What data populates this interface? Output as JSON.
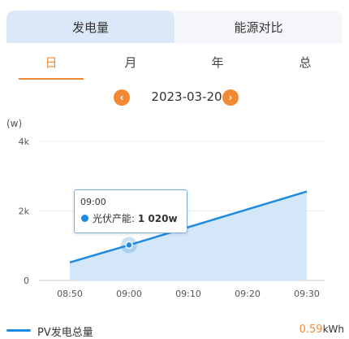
{
  "top_tabs": [
    {
      "label": "发电量",
      "active": true
    },
    {
      "label": "能源对比",
      "active": false
    }
  ],
  "period_tabs": [
    {
      "label": "日",
      "active": true
    },
    {
      "label": "月",
      "active": false
    },
    {
      "label": "年",
      "active": false
    },
    {
      "label": "总",
      "active": false
    }
  ],
  "date_nav": {
    "prev_icon": "chevron-left-icon",
    "next_icon": "chevron-right-icon",
    "date": "2023-03-20"
  },
  "colors": {
    "accent": "#f28a35",
    "series": "#1f8be0",
    "area": "#cfe4f8"
  },
  "chart_data": {
    "type": "area",
    "unit_label": "(w)",
    "y_ticks": [
      "4k",
      "2k",
      "0"
    ],
    "ylim": [
      0,
      4000
    ],
    "x_ticks": [
      "08:50",
      "09:00",
      "09:10",
      "09:20",
      "09:30"
    ],
    "series": [
      {
        "name": "PV发电总量",
        "x": [
          "08:50",
          "09:00",
          "09:30"
        ],
        "values": [
          520,
          1020,
          2560
        ]
      }
    ],
    "tooltip": {
      "time": "09:00",
      "label": "光伏产能",
      "value": "1 020w"
    }
  },
  "legend": {
    "label": "PV发电总量",
    "total_value": "0.59",
    "total_unit": "kWh"
  }
}
